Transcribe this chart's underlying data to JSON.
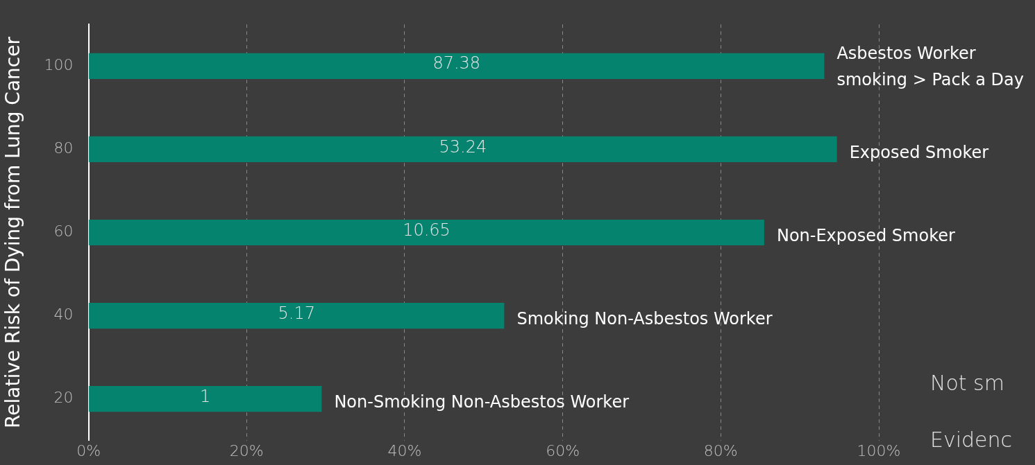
{
  "chart_data": {
    "type": "bar",
    "orientation": "horizontal",
    "ylabel": "Relative Risk of Dying from Lung Cancer",
    "categories": [
      "100",
      "80",
      "60",
      "40",
      "20"
    ],
    "values": [
      93.1,
      94.7,
      85.5,
      52.6,
      29.5
    ],
    "color": "#06836f",
    "xlim": [
      0,
      100
    ],
    "xticks": [
      {
        "value": 0,
        "label": "0%"
      },
      {
        "value": 20,
        "label": "20%"
      },
      {
        "value": 40,
        "label": "40%"
      },
      {
        "value": 60,
        "label": "60%"
      },
      {
        "value": 80,
        "label": "80%"
      },
      {
        "value": 100,
        "label": "100%"
      }
    ],
    "grid": "x",
    "legend": false,
    "annotations": [
      "87.38",
      "53.24",
      "10.65",
      "5.17",
      "1",
      {
        "text": "Asbestos Worker\nsmoking > Pack a Day",
        "x": 93.1,
        "y": "100"
      },
      {
        "text": "Exposed Smoker",
        "x": 94.7,
        "y": "80"
      },
      {
        "text": "Non-Exposed Smoker",
        "x": 85.5,
        "y": "60"
      },
      {
        "text": "Smoking Non-Asbestos Worker",
        "x": 52.6,
        "y": "40"
      },
      {
        "text": "Non-Smoking Non-Asbestos Worker",
        "x": 29.5,
        "y": "20"
      },
      "Not sm",
      "Evidenc"
    ]
  }
}
